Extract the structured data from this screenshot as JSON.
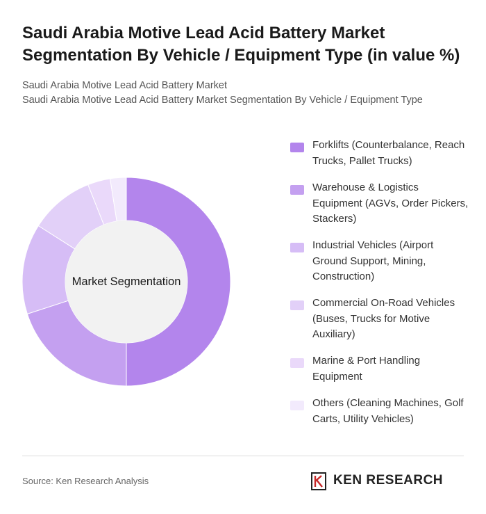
{
  "title": "Saudi Arabia Motive Lead Acid Battery Market Segmentation By Vehicle / Equipment Type (in value %)",
  "subtitle_line1": "Saudi Arabia Motive Lead Acid Battery Market",
  "subtitle_line2": "Saudi Arabia Motive Lead Acid Battery Market Segmentation By Vehicle / Equipment Type",
  "center_label": "Market Segmentation",
  "source": "Source: Ken Research Analysis",
  "logo_text": "KEN RESEARCH",
  "chart_data": {
    "type": "pie",
    "donut": true,
    "legend_position": "right",
    "categories": [
      "Forklifts (Counterbalance, Reach Trucks, Pallet Trucks)",
      "Warehouse & Logistics Equipment (AGVs, Order Pickers, Stackers)",
      "Industrial Vehicles (Airport Ground Support, Mining, Construction)",
      "Commercial On-Road Vehicles (Buses, Trucks for Motive Auxiliary)",
      "Marine & Port Handling Equipment",
      "Others (Cleaning Machines, Golf Carts, Utility Vehicles)"
    ],
    "values": [
      50,
      20,
      14,
      10,
      3.5,
      2.5
    ],
    "colors": [
      "#b385ec",
      "#c4a0f0",
      "#d6bdf6",
      "#e2d0f8",
      "#ead9fa",
      "#f2eafc"
    ]
  }
}
